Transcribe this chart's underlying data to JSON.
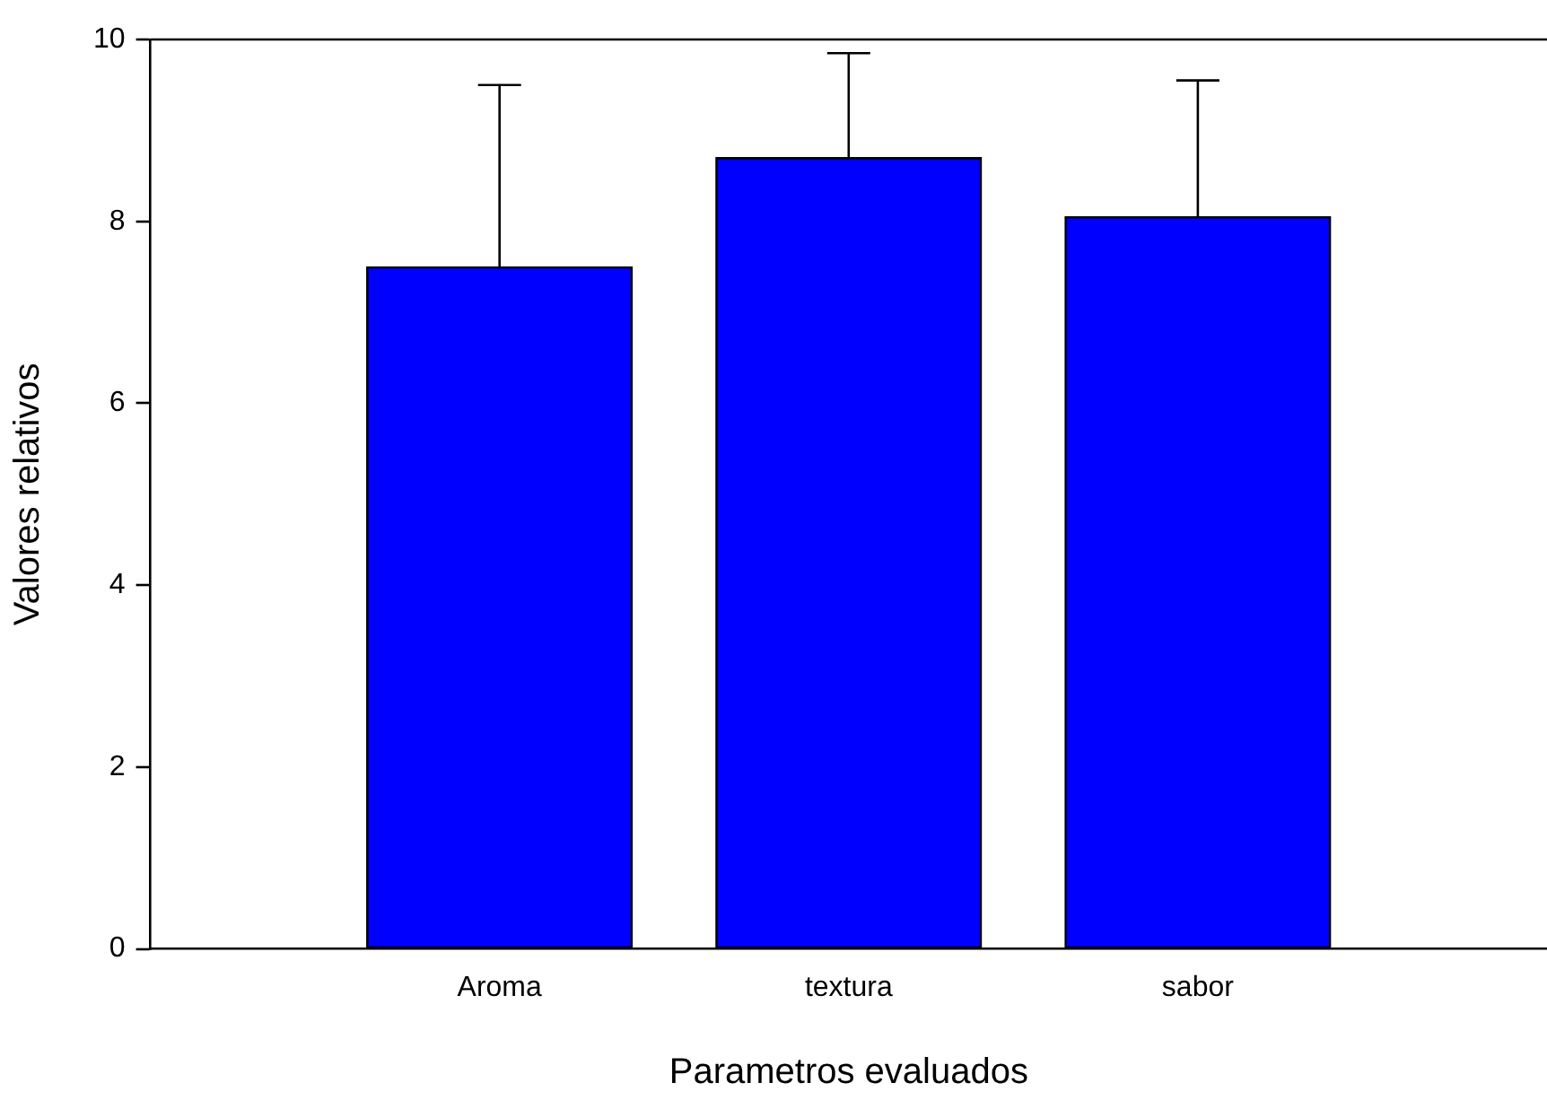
{
  "chart_data": {
    "type": "bar",
    "xlabel": "Parametros evaluados",
    "ylabel": "Valores relativos",
    "categories": [
      "Aroma",
      "textura",
      "sabor"
    ],
    "series": [
      {
        "color": "#0000ff",
        "values": [
          7.5,
          8.7,
          8.05
        ],
        "errors": [
          [
            7.5,
            9.5
          ],
          [
            8.7,
            9.85
          ],
          [
            8.05,
            9.55
          ]
        ]
      }
    ],
    "ylim": [
      0,
      10
    ],
    "yticks": [
      0,
      2,
      4,
      6,
      8,
      10
    ],
    "grid": false,
    "legend": false
  }
}
